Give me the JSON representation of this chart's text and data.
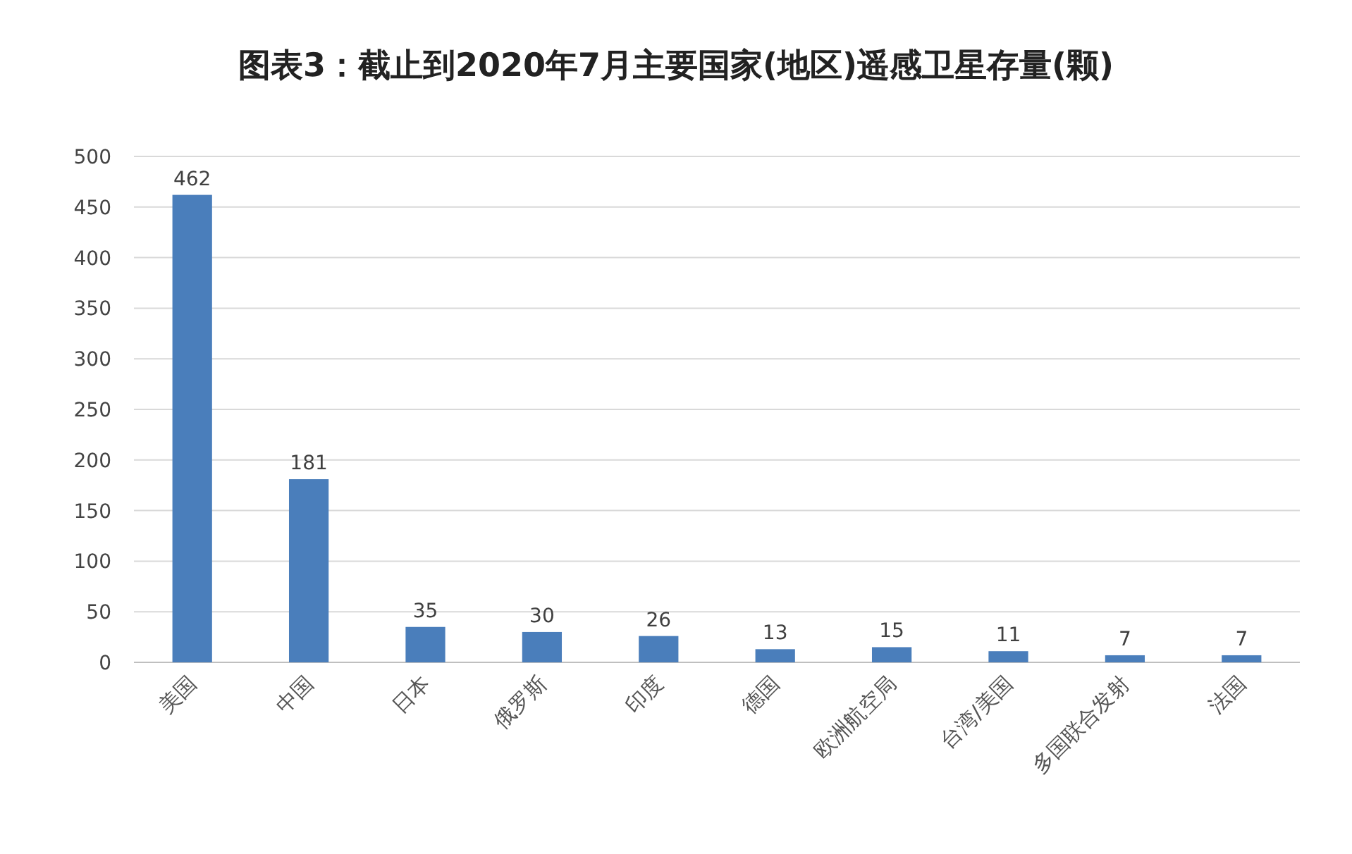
{
  "chart_data": {
    "type": "bar",
    "title": "图表3：截止到2020年7月主要国家(地区)遥感卫星存量(颗)",
    "categories": [
      "美国",
      "中国",
      "日本",
      "俄罗斯",
      "印度",
      "德国",
      "欧洲航空局",
      "台湾/美国",
      "多国联合发射",
      "法国"
    ],
    "values": [
      462,
      181,
      35,
      30,
      26,
      13,
      15,
      11,
      7,
      7
    ],
    "color": "#4a7ebb",
    "ylim": [
      0,
      500
    ],
    "yticks": [
      0,
      50,
      100,
      150,
      200,
      250,
      300,
      350,
      400,
      450,
      500
    ],
    "grid": "y",
    "data_labels": true
  }
}
